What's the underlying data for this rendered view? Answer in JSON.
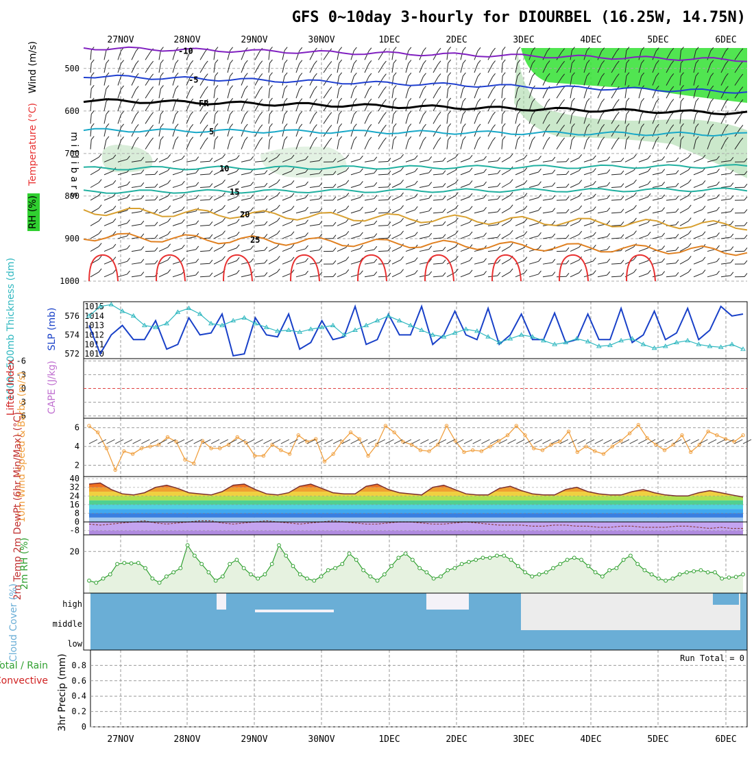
{
  "title": "GFS 0~10day 3-hourly for DIOURBEL (16.25W, 14.75N)",
  "dates": [
    "27NOV",
    "28NOV",
    "29NOV",
    "30NOV",
    "1DEC",
    "2DEC",
    "3DEC",
    "4DEC",
    "5DEC",
    "6DEC"
  ],
  "colors": {
    "temp_red": "#e83030",
    "temp_orange": "#e08020",
    "temp_gold": "#d8a030",
    "temp_teal": "#20b0a0",
    "temp_cyan": "#18a8c8",
    "temp_blue": "#2040d0",
    "temp_purple": "#8020c0",
    "rh_green": "#30d030",
    "slp": "#1840c8",
    "thickness": "#30b8c0",
    "wind10": "#f0a040",
    "rh2m": "#30a030",
    "cloud": "#6aaed6"
  },
  "chart_data": [
    {
      "type": "contour",
      "name": "upper-air",
      "ylabel": "m i l l i b a r s",
      "side_labels": [
        "Wind (m/s)",
        "Temperature (°C)",
        "RH (%)"
      ],
      "yticks": [
        500,
        600,
        700,
        800,
        900,
        1000
      ],
      "ylim": [
        450,
        1000
      ],
      "isotherms": [
        {
          "label": "-10",
          "level_start": 452,
          "level_end": 480
        },
        {
          "label": "-5",
          "level_start": 518,
          "level_end": 555
        },
        {
          "label": "FR",
          "level_start": 575,
          "level_end": 605
        },
        {
          "label": "5",
          "level_start": 645,
          "level_end": 655
        },
        {
          "label": "10",
          "level_start": 735,
          "level_end": 730
        },
        {
          "label": "15",
          "level_start": 790,
          "level_end": 785
        },
        {
          "label": "20",
          "level_start": 835,
          "level_end": 870
        },
        {
          "label": "25",
          "level_start": 895,
          "level_end": 930
        }
      ],
      "rh_shading": [
        70,
        90
      ]
    },
    {
      "type": "line",
      "name": "slp-thickness",
      "ylabel_left": "1000~500mb Thickness (dm)",
      "ylabel_right": "SLP (mb)",
      "yticks_left": [
        572,
        574,
        576
      ],
      "yticks_right": [
        1010,
        1011,
        1012,
        1013,
        1014,
        1015
      ],
      "series": [
        {
          "name": "SLP",
          "values": [
            1013,
            1010,
            1012,
            1013,
            1011.5,
            1011.5,
            1013.5,
            1010.5,
            1011,
            1013.8,
            1012,
            1012.2,
            1014.2,
            1009.8,
            1010,
            1013.8,
            1012,
            1011.8,
            1014.2,
            1010.5,
            1011.2,
            1013.5,
            1011.5,
            1011.8,
            1015,
            1011,
            1011.5,
            1014.2,
            1012,
            1012,
            1015,
            1011,
            1012,
            1014.5,
            1012,
            1011.5,
            1014.8,
            1011,
            1012,
            1014.2,
            1011.5,
            1011.5,
            1014.3,
            1011.2,
            1011.5,
            1014.2,
            1011.5,
            1011.5,
            1014.8,
            1011.2,
            1012,
            1014.5,
            1011.5,
            1012.2,
            1014.8,
            1011.5,
            1012.5,
            1015,
            1014,
            1014.2
          ]
        },
        {
          "name": "Thickness",
          "values": [
            576,
            577,
            577.2,
            576.5,
            576,
            575,
            574.8,
            575.2,
            576.4,
            576.8,
            576.2,
            575.2,
            575,
            575.5,
            575.8,
            575.2,
            574.8,
            574.4,
            574.5,
            574.3,
            574.6,
            574.8,
            575,
            574,
            574.5,
            575,
            575.5,
            576,
            575.5,
            575,
            574.5,
            574,
            573.8,
            574.2,
            574.6,
            574.4,
            573.8,
            573.2,
            573.6,
            574,
            573.8,
            573.4,
            573,
            573.2,
            573.6,
            573.3,
            572.8,
            572.9,
            573.4,
            573.6,
            573,
            572.6,
            572.8,
            573.2,
            573.4,
            573,
            572.8,
            572.7,
            573,
            572.5
          ]
        }
      ]
    },
    {
      "type": "line",
      "name": "lifted-index-cape",
      "ylabel_left": "Lifted Index",
      "ylabel_right": "CAPE (J/kg)",
      "yticks": [
        -6,
        -3,
        0,
        3,
        6
      ],
      "ylim": [
        -6,
        6
      ],
      "series": []
    },
    {
      "type": "line",
      "name": "wind-10m",
      "ylabel": "10m Wind Speed & Barbs (m/s)",
      "yticks": [
        2,
        4,
        6
      ],
      "ylim": [
        0.8,
        7
      ],
      "series": [
        {
          "name": "Speed",
          "values": [
            6.2,
            5.5,
            3.8,
            1.5,
            3.5,
            3.2,
            3.8,
            4,
            4.2,
            5,
            4.5,
            2.6,
            2.2,
            4.6,
            3.8,
            3.8,
            4.2,
            5,
            4.4,
            3,
            3,
            4.2,
            3.6,
            3.2,
            5.2,
            4.5,
            4.8,
            2.4,
            3.2,
            4.5,
            5.5,
            4.8,
            3,
            4.2,
            6.2,
            5.5,
            4.5,
            4.2,
            3.6,
            3.5,
            4.2,
            6.2,
            4.6,
            3.4,
            3.6,
            3.5,
            4,
            4.6,
            5.2,
            6.2,
            5.2,
            3.8,
            3.6,
            4.2,
            4.5,
            5.6,
            3.4,
            4,
            3.5,
            3.2,
            4,
            4.6,
            5.4,
            6.3,
            4.9,
            4.2,
            3.6,
            4.2,
            5.2,
            3.4,
            4.2,
            5.6,
            5.2,
            4.8,
            4.5,
            5.2
          ]
        }
      ]
    },
    {
      "type": "line",
      "name": "temp-2m",
      "ylabel": "2m Temp 2m DewPt (6hr Min/Max) (°C)",
      "yticks": [
        -8,
        0,
        8,
        16,
        24,
        32,
        40
      ],
      "ylim": [
        -12,
        42
      ],
      "series": [
        {
          "name": "Temp",
          "values": [
            35,
            36,
            30,
            26,
            25,
            27,
            32,
            34,
            31,
            27,
            26,
            25,
            28,
            34,
            35,
            30,
            26,
            25,
            27,
            33,
            35,
            31,
            27,
            26,
            26,
            33,
            35,
            30,
            27,
            26,
            25,
            32,
            34,
            30,
            26,
            25,
            25,
            31,
            33,
            29,
            26,
            25,
            25,
            30,
            32,
            28,
            26,
            25,
            25,
            28,
            30,
            27,
            25,
            24,
            24,
            27,
            29,
            27,
            25,
            23
          ]
        },
        {
          "name": "DewPt",
          "values": [
            -2,
            -3,
            -2,
            -1,
            0,
            1,
            -1,
            -2,
            -1,
            0,
            1,
            1,
            -1,
            -2,
            -1,
            0,
            1,
            0,
            -1,
            -2,
            -1,
            0,
            1,
            0,
            -1,
            -2,
            -2,
            -1,
            0,
            0,
            -1,
            -2,
            -2,
            -1,
            0,
            -1,
            -2,
            -3,
            -3,
            -3,
            -4,
            -4,
            -3,
            -3,
            -4,
            -4,
            -5,
            -5,
            -4,
            -4,
            -5,
            -5,
            -5,
            -4,
            -4,
            -5,
            -6,
            -5,
            -6,
            -6
          ]
        }
      ]
    },
    {
      "type": "area",
      "name": "rh-2m",
      "ylabel": "2m RH (%)",
      "yticks": [
        20
      ],
      "ylim": [
        0,
        28
      ],
      "series": [
        {
          "name": "RH",
          "values": [
            6,
            5,
            7,
            9,
            14,
            14.5,
            14.3,
            14.5,
            12,
            7,
            5,
            8,
            10,
            12,
            23,
            18,
            14,
            10,
            6,
            8,
            14,
            16,
            12,
            9,
            7,
            9,
            14,
            23,
            18,
            13,
            9,
            7,
            6,
            8,
            11,
            12,
            14,
            19,
            16,
            11,
            8,
            6,
            9,
            13,
            17,
            19,
            16,
            12,
            10,
            7,
            8,
            11,
            12,
            14,
            15,
            16,
            17,
            17,
            18,
            18,
            16,
            13,
            10,
            8,
            9,
            10,
            12,
            14,
            16,
            17,
            16,
            13,
            10,
            8,
            11,
            12,
            16,
            18,
            14,
            11,
            9,
            7,
            6,
            7,
            9,
            10,
            10.5,
            11,
            10,
            10,
            7,
            7.5,
            7.8,
            9
          ]
        }
      ]
    },
    {
      "type": "heatmap",
      "name": "cloud-cover",
      "ylabel": "Cloud Cover (%)",
      "rows": [
        "high",
        "middle",
        "low"
      ]
    },
    {
      "type": "bar",
      "name": "precip",
      "ylabel": "3hr Precip (mm)",
      "left_labels": [
        "Total / Rain",
        "Convective"
      ],
      "yticks": [
        0,
        0.2,
        0.4,
        0.6,
        0.8
      ],
      "ylim": [
        0,
        1
      ],
      "run_total": "Run Total = 0",
      "values": []
    }
  ]
}
